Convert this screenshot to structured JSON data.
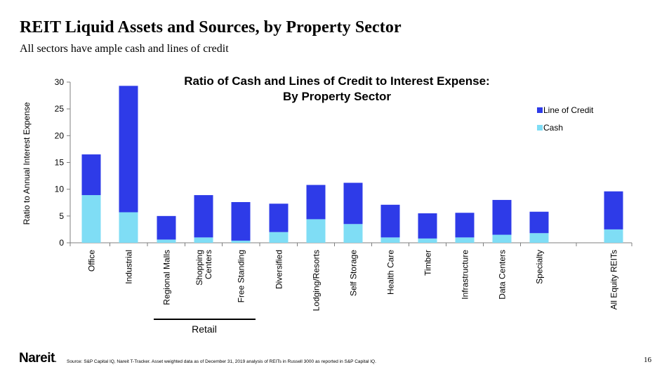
{
  "slide": {
    "title": "REIT Liquid Assets and Sources, by Property Sector",
    "subtitle": "All sectors have ample cash and lines of credit",
    "logo": "Nareit",
    "logo_mark": ".",
    "source": "Source: S&P Capital IQ, Nareit T-Tracker. Asset weighted data as of December 31, 2019 analysis of REITs in Russell 3000 as reported in S&P Capital IQ.",
    "page_number": "16"
  },
  "colors": {
    "line_of_credit": "#2E3BE8",
    "cash": "#7FDDF5",
    "axis": "#7F7F7F"
  },
  "chart_data": {
    "type": "bar",
    "stacked": true,
    "title": "Ratio of Cash and Lines of Credit to Interest Expense:",
    "subtitle": "By Property Sector",
    "ylabel": "Ratio to Annual Interest Expense",
    "ylim": [
      0,
      30
    ],
    "yticks": [
      0,
      5,
      10,
      15,
      20,
      25,
      30
    ],
    "grid": false,
    "legend_position": "top-right",
    "group_label": "Retail",
    "group_categories": [
      "Regional Malls",
      "Shopping Centers",
      "Free Standing"
    ],
    "categories": [
      "Office",
      "Industrial",
      "Regional Malls",
      "Shopping Centers",
      "Free Standing",
      "Diversified",
      "Lodging/Resorts",
      "Self Storage",
      "Health Care",
      "Timber",
      "Infrastructure",
      "Data Centers",
      "Specialty",
      "All Equity REITs"
    ],
    "category_lines": [
      [
        "Office"
      ],
      [
        "Industrial"
      ],
      [
        "Regional Malls"
      ],
      [
        "Shopping",
        "Centers"
      ],
      [
        "Free Standing"
      ],
      [
        "Diversified"
      ],
      [
        "Lodging/Resorts"
      ],
      [
        "Self Storage"
      ],
      [
        "Health Care"
      ],
      [
        "Timber"
      ],
      [
        "Infrastructure"
      ],
      [
        "Data Centers"
      ],
      [
        "Specialty"
      ],
      [
        "All Equity REITs"
      ]
    ],
    "series": [
      {
        "name": "Cash",
        "values": [
          8.9,
          5.7,
          0.6,
          1.0,
          0.4,
          2.0,
          4.4,
          3.5,
          1.0,
          0.8,
          1.0,
          1.5,
          1.8,
          2.5
        ]
      },
      {
        "name": "Line of Credit",
        "values": [
          7.6,
          23.6,
          4.4,
          7.9,
          7.2,
          5.3,
          6.4,
          7.7,
          6.1,
          4.7,
          4.6,
          6.5,
          4.0,
          7.1
        ]
      }
    ]
  }
}
